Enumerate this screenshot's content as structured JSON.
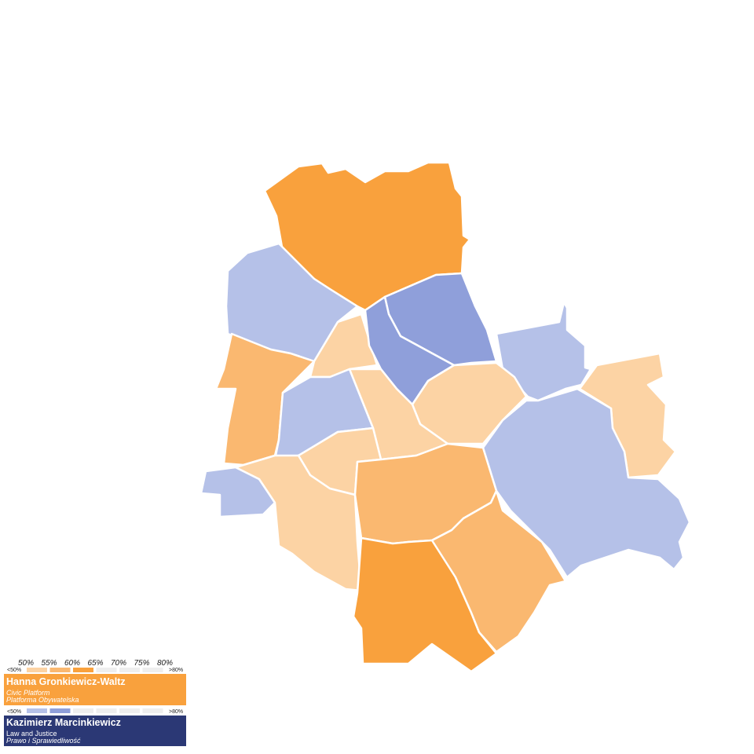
{
  "legend": {
    "scale": [
      "50%",
      "55%",
      "60%",
      "65%",
      "70%",
      "75%",
      "80%"
    ],
    "low_label": "<50%",
    "high_label": ">80%",
    "candidates": [
      {
        "name": "Hanna Gronkiewicz-Waltz",
        "party": "Civic Platform",
        "party_native": "Platforma Obywatelska"
      },
      {
        "name": "Kazimierz Marcinkiewicz",
        "party": "Law and Justice",
        "party_native": "Prawo i Sprawiedliwość"
      }
    ]
  }
}
